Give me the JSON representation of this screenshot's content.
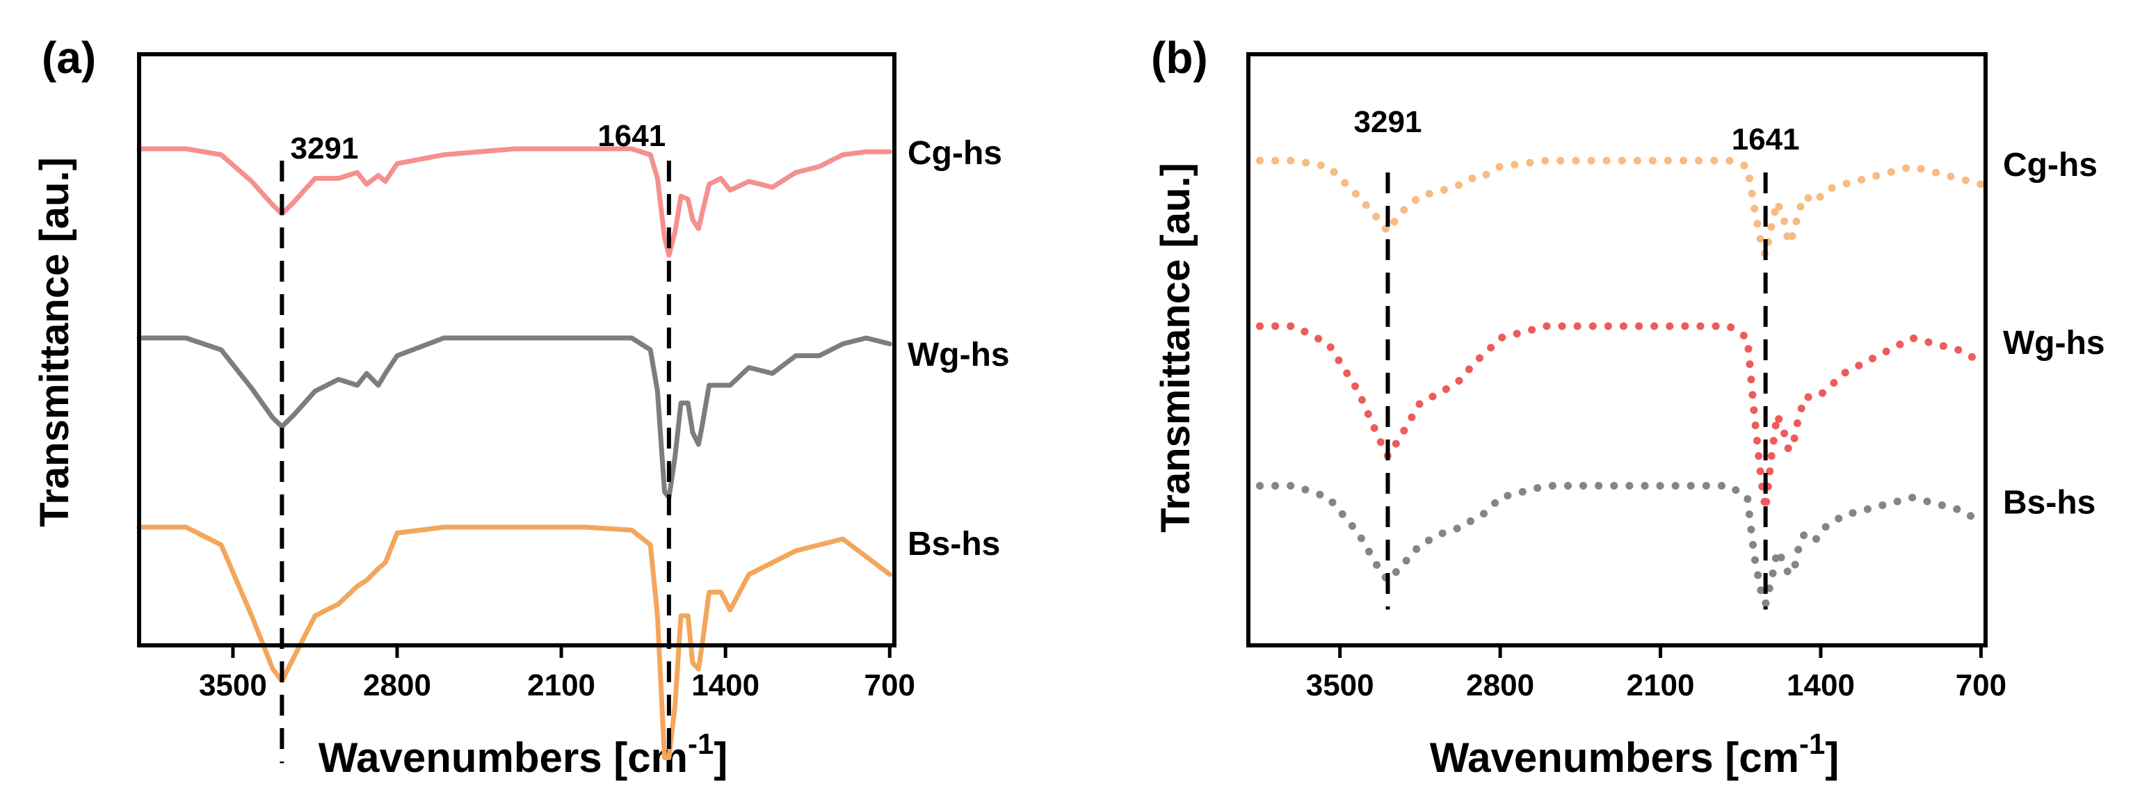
{
  "chart_data": [
    {
      "panel_label": "(a)",
      "type": "line",
      "style": "solid",
      "xlabel_main": "Wavenumbers [cm",
      "xlabel_sup": "-1",
      "xlabel_close": "]",
      "ylabel": "Transmittance [au.]",
      "xlim": [
        3900,
        680
      ],
      "x_ticks": [
        3500,
        2800,
        2100,
        1400,
        700
      ],
      "tick_labels": [
        "3500",
        "2800",
        "2100",
        "1400",
        "700"
      ],
      "markers": [
        {
          "x": 3291,
          "label": "3291",
          "label_at_x": 3110
        },
        {
          "x": 1641,
          "label": "1641",
          "label_at_x": 1800
        }
      ],
      "series": [
        {
          "name": "Cg-hs",
          "color": "#f4908e",
          "offset": 0.84,
          "x": [
            3900,
            3700,
            3550,
            3420,
            3330,
            3291,
            3240,
            3150,
            3050,
            2970,
            2930,
            2880,
            2850,
            2800,
            2600,
            2300,
            2000,
            1800,
            1720,
            1690,
            1660,
            1641,
            1615,
            1590,
            1560,
            1540,
            1515,
            1500,
            1470,
            1420,
            1380,
            1300,
            1200,
            1100,
            1000,
            900,
            800,
            700
          ],
          "y": [
            0.0,
            0.0,
            -0.01,
            -0.055,
            -0.095,
            -0.11,
            -0.09,
            -0.05,
            -0.05,
            -0.04,
            -0.06,
            -0.045,
            -0.055,
            -0.025,
            -0.01,
            0.0,
            0.0,
            0.0,
            -0.01,
            -0.05,
            -0.15,
            -0.18,
            -0.14,
            -0.08,
            -0.085,
            -0.12,
            -0.135,
            -0.11,
            -0.06,
            -0.05,
            -0.07,
            -0.055,
            -0.065,
            -0.04,
            -0.03,
            -0.01,
            -0.005,
            -0.005
          ]
        },
        {
          "name": "Wg-hs",
          "color": "#7d7d7d",
          "offset": 0.52,
          "x": [
            3900,
            3700,
            3550,
            3420,
            3330,
            3291,
            3240,
            3150,
            3050,
            2970,
            2930,
            2880,
            2850,
            2800,
            2600,
            2300,
            2000,
            1800,
            1720,
            1690,
            1660,
            1641,
            1615,
            1590,
            1560,
            1540,
            1515,
            1500,
            1470,
            1420,
            1380,
            1300,
            1200,
            1100,
            1000,
            900,
            800,
            700
          ],
          "y": [
            0.0,
            0.0,
            -0.02,
            -0.085,
            -0.135,
            -0.15,
            -0.13,
            -0.09,
            -0.07,
            -0.08,
            -0.06,
            -0.08,
            -0.06,
            -0.03,
            0.0,
            0.0,
            0.0,
            0.0,
            -0.02,
            -0.09,
            -0.26,
            -0.27,
            -0.2,
            -0.11,
            -0.11,
            -0.16,
            -0.18,
            -0.15,
            -0.08,
            -0.08,
            -0.08,
            -0.05,
            -0.06,
            -0.03,
            -0.03,
            -0.01,
            0.0,
            -0.01
          ]
        },
        {
          "name": "Bs-hs",
          "color": "#f3a65c",
          "offset": 0.2,
          "x": [
            3900,
            3700,
            3550,
            3420,
            3330,
            3291,
            3240,
            3150,
            3050,
            2970,
            2930,
            2880,
            2850,
            2800,
            2600,
            2300,
            2000,
            1800,
            1720,
            1690,
            1660,
            1641,
            1615,
            1590,
            1560,
            1540,
            1515,
            1500,
            1470,
            1420,
            1380,
            1300,
            1200,
            1100,
            1000,
            900,
            800,
            700
          ],
          "y": [
            0.0,
            0.0,
            -0.03,
            -0.15,
            -0.24,
            -0.26,
            -0.22,
            -0.15,
            -0.13,
            -0.1,
            -0.09,
            -0.07,
            -0.06,
            -0.01,
            0.0,
            0.0,
            0.0,
            -0.005,
            -0.03,
            -0.15,
            -0.39,
            -0.39,
            -0.3,
            -0.15,
            -0.15,
            -0.23,
            -0.24,
            -0.2,
            -0.11,
            -0.11,
            -0.14,
            -0.08,
            -0.06,
            -0.04,
            -0.03,
            -0.02,
            -0.05,
            -0.08
          ]
        }
      ]
    },
    {
      "panel_label": "(b)",
      "type": "line",
      "style": "dotted",
      "xlabel_main": "Wavenumbers [cm",
      "xlabel_sup": "-1",
      "xlabel_close": "]",
      "ylabel": "Transmittance [au.]",
      "xlim": [
        3900,
        680
      ],
      "x_ticks": [
        3500,
        2800,
        2100,
        1400,
        700
      ],
      "tick_labels": [
        "3500",
        "2800",
        "2100",
        "1400",
        "700"
      ],
      "markers": [
        {
          "x": 3291,
          "label": "3291",
          "label_at_x": 3291
        },
        {
          "x": 1641,
          "label": "1641",
          "label_at_x": 1641
        }
      ],
      "series": [
        {
          "name": "Cg-hs",
          "color": "#f8bb82",
          "offset": 0.82,
          "x": [
            3850,
            3700,
            3550,
            3420,
            3330,
            3291,
            3240,
            3150,
            3050,
            2970,
            2930,
            2880,
            2850,
            2800,
            2600,
            2300,
            2000,
            1800,
            1720,
            1690,
            1660,
            1641,
            1615,
            1590,
            1560,
            1540,
            1515,
            1500,
            1470,
            1420,
            1380,
            1300,
            1200,
            1100,
            1000,
            900,
            800,
            700
          ],
          "y": [
            0.0,
            0.0,
            -0.01,
            -0.06,
            -0.1,
            -0.12,
            -0.09,
            -0.06,
            -0.05,
            -0.04,
            -0.03,
            -0.03,
            -0.02,
            -0.01,
            0.0,
            0.0,
            0.0,
            0.0,
            -0.01,
            -0.08,
            -0.14,
            -0.16,
            -0.11,
            -0.07,
            -0.1,
            -0.14,
            -0.12,
            -0.09,
            -0.06,
            -0.07,
            -0.05,
            -0.04,
            -0.03,
            -0.02,
            -0.01,
            -0.02,
            -0.03,
            -0.04
          ]
        },
        {
          "name": "Wg-hs",
          "color": "#ee5b5b",
          "offset": 0.54,
          "x": [
            3850,
            3700,
            3550,
            3420,
            3330,
            3291,
            3240,
            3150,
            3050,
            2970,
            2930,
            2880,
            2850,
            2800,
            2600,
            2300,
            2000,
            1800,
            1720,
            1690,
            1660,
            1641,
            1615,
            1590,
            1560,
            1540,
            1515,
            1500,
            1470,
            1420,
            1380,
            1300,
            1200,
            1100,
            1000,
            900,
            800,
            700
          ],
          "y": [
            0.0,
            0.0,
            -0.03,
            -0.11,
            -0.19,
            -0.22,
            -0.19,
            -0.13,
            -0.11,
            -0.09,
            -0.07,
            -0.05,
            -0.04,
            -0.02,
            0.0,
            0.0,
            0.0,
            0.0,
            -0.02,
            -0.15,
            -0.26,
            -0.31,
            -0.22,
            -0.15,
            -0.18,
            -0.21,
            -0.19,
            -0.16,
            -0.12,
            -0.12,
            -0.11,
            -0.08,
            -0.06,
            -0.04,
            -0.02,
            -0.03,
            -0.04,
            -0.06
          ]
        },
        {
          "name": "Bs-hs",
          "color": "#858585",
          "offset": 0.27,
          "x": [
            3850,
            3700,
            3550,
            3420,
            3330,
            3291,
            3240,
            3150,
            3050,
            2970,
            2930,
            2880,
            2850,
            2800,
            2600,
            2300,
            2000,
            1800,
            1720,
            1690,
            1660,
            1641,
            1615,
            1590,
            1560,
            1540,
            1515,
            1500,
            1470,
            1420,
            1380,
            1300,
            1200,
            1100,
            1000,
            900,
            800,
            700
          ],
          "y": [
            0.0,
            0.0,
            -0.02,
            -0.08,
            -0.14,
            -0.16,
            -0.14,
            -0.1,
            -0.08,
            -0.07,
            -0.06,
            -0.05,
            -0.04,
            -0.02,
            0.0,
            0.0,
            0.0,
            0.0,
            -0.02,
            -0.12,
            -0.18,
            -0.2,
            -0.16,
            -0.11,
            -0.13,
            -0.15,
            -0.14,
            -0.11,
            -0.08,
            -0.09,
            -0.07,
            -0.05,
            -0.04,
            -0.03,
            -0.02,
            -0.03,
            -0.04,
            -0.06
          ]
        }
      ]
    }
  ]
}
